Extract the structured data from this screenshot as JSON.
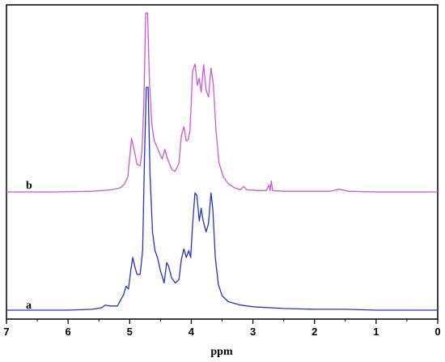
{
  "chart_data": {
    "type": "line",
    "title": "",
    "xlabel": "ppm",
    "ylabel": "",
    "xlim": [
      7,
      0
    ],
    "x_reversed": true,
    "xticks": [
      "7",
      "6",
      "5",
      "4",
      "3",
      "2",
      "1",
      "0"
    ],
    "xtick_values": [
      7,
      6,
      5,
      4,
      3,
      2,
      1,
      0
    ],
    "grid": false,
    "legend": "none",
    "series": [
      {
        "label": "b",
        "color": "#cc55dd",
        "points": [
          [
            7.0,
            0
          ],
          [
            6.2,
            0
          ],
          [
            5.6,
            0.01
          ],
          [
            5.3,
            0.03
          ],
          [
            5.15,
            0.06
          ],
          [
            5.08,
            0.12
          ],
          [
            5.03,
            0.22
          ],
          [
            4.97,
            0.78
          ],
          [
            4.93,
            0.62
          ],
          [
            4.88,
            0.4
          ],
          [
            4.83,
            0.38
          ],
          [
            4.8,
            0.6
          ],
          [
            4.77,
            1.3
          ],
          [
            4.74,
            2.6
          ],
          [
            4.71,
            2.6
          ],
          [
            4.68,
            1.6
          ],
          [
            4.64,
            0.98
          ],
          [
            4.6,
            0.74
          ],
          [
            4.56,
            0.66
          ],
          [
            4.51,
            0.55
          ],
          [
            4.47,
            0.48
          ],
          [
            4.43,
            0.62
          ],
          [
            4.4,
            0.52
          ],
          [
            4.36,
            0.42
          ],
          [
            4.31,
            0.32
          ],
          [
            4.26,
            0.3
          ],
          [
            4.2,
            0.42
          ],
          [
            4.16,
            0.82
          ],
          [
            4.12,
            0.95
          ],
          [
            4.08,
            0.74
          ],
          [
            4.05,
            0.76
          ],
          [
            4.02,
            0.9
          ],
          [
            3.98,
            1.75
          ],
          [
            3.94,
            1.86
          ],
          [
            3.9,
            1.55
          ],
          [
            3.87,
            1.65
          ],
          [
            3.84,
            1.45
          ],
          [
            3.8,
            1.85
          ],
          [
            3.76,
            1.48
          ],
          [
            3.72,
            1.38
          ],
          [
            3.68,
            1.8
          ],
          [
            3.64,
            1.55
          ],
          [
            3.6,
            0.9
          ],
          [
            3.55,
            0.42
          ],
          [
            3.48,
            0.22
          ],
          [
            3.4,
            0.12
          ],
          [
            3.3,
            0.06
          ],
          [
            3.2,
            0.03
          ],
          [
            3.15,
            0.08
          ],
          [
            3.1,
            0.03
          ],
          [
            2.9,
            0.02
          ],
          [
            2.78,
            0.02
          ],
          [
            2.74,
            0.1
          ],
          [
            2.72,
            0.02
          ],
          [
            2.7,
            0.16
          ],
          [
            2.68,
            0.02
          ],
          [
            2.5,
            0.01
          ],
          [
            1.75,
            0.01
          ],
          [
            1.6,
            0.04
          ],
          [
            1.45,
            0.01
          ],
          [
            1.0,
            0
          ],
          [
            0.0,
            0
          ]
        ]
      },
      {
        "label": "a",
        "color": "#2233cc",
        "points": [
          [
            7.0,
            0
          ],
          [
            6.0,
            0
          ],
          [
            5.6,
            0.01
          ],
          [
            5.45,
            0.03
          ],
          [
            5.4,
            0.06
          ],
          [
            5.33,
            0.05
          ],
          [
            5.2,
            0.05
          ],
          [
            5.1,
            0.18
          ],
          [
            5.06,
            0.28
          ],
          [
            5.02,
            0.25
          ],
          [
            4.98,
            0.48
          ],
          [
            4.95,
            0.62
          ],
          [
            4.92,
            0.52
          ],
          [
            4.88,
            0.42
          ],
          [
            4.83,
            0.42
          ],
          [
            4.79,
            0.7
          ],
          [
            4.76,
            1.8
          ],
          [
            4.73,
            2.62
          ],
          [
            4.7,
            2.62
          ],
          [
            4.67,
            1.6
          ],
          [
            4.63,
            0.92
          ],
          [
            4.59,
            0.7
          ],
          [
            4.55,
            0.62
          ],
          [
            4.5,
            0.46
          ],
          [
            4.44,
            0.32
          ],
          [
            4.4,
            0.56
          ],
          [
            4.37,
            0.52
          ],
          [
            4.32,
            0.38
          ],
          [
            4.26,
            0.32
          ],
          [
            4.2,
            0.36
          ],
          [
            4.16,
            0.6
          ],
          [
            4.12,
            0.72
          ],
          [
            4.08,
            0.62
          ],
          [
            4.04,
            0.7
          ],
          [
            4.01,
            0.62
          ],
          [
            3.98,
            1.0
          ],
          [
            3.94,
            1.38
          ],
          [
            3.91,
            1.35
          ],
          [
            3.87,
            1.05
          ],
          [
            3.84,
            1.2
          ],
          [
            3.81,
            1.06
          ],
          [
            3.76,
            0.92
          ],
          [
            3.72,
            1.02
          ],
          [
            3.68,
            1.38
          ],
          [
            3.65,
            1.18
          ],
          [
            3.61,
            0.62
          ],
          [
            3.56,
            0.3
          ],
          [
            3.5,
            0.17
          ],
          [
            3.4,
            0.1
          ],
          [
            3.2,
            0.06
          ],
          [
            3.0,
            0.04
          ],
          [
            2.5,
            0.02
          ],
          [
            2.0,
            0.01
          ],
          [
            1.5,
            0.01
          ],
          [
            1.0,
            0
          ],
          [
            0.0,
            0
          ]
        ]
      }
    ]
  }
}
